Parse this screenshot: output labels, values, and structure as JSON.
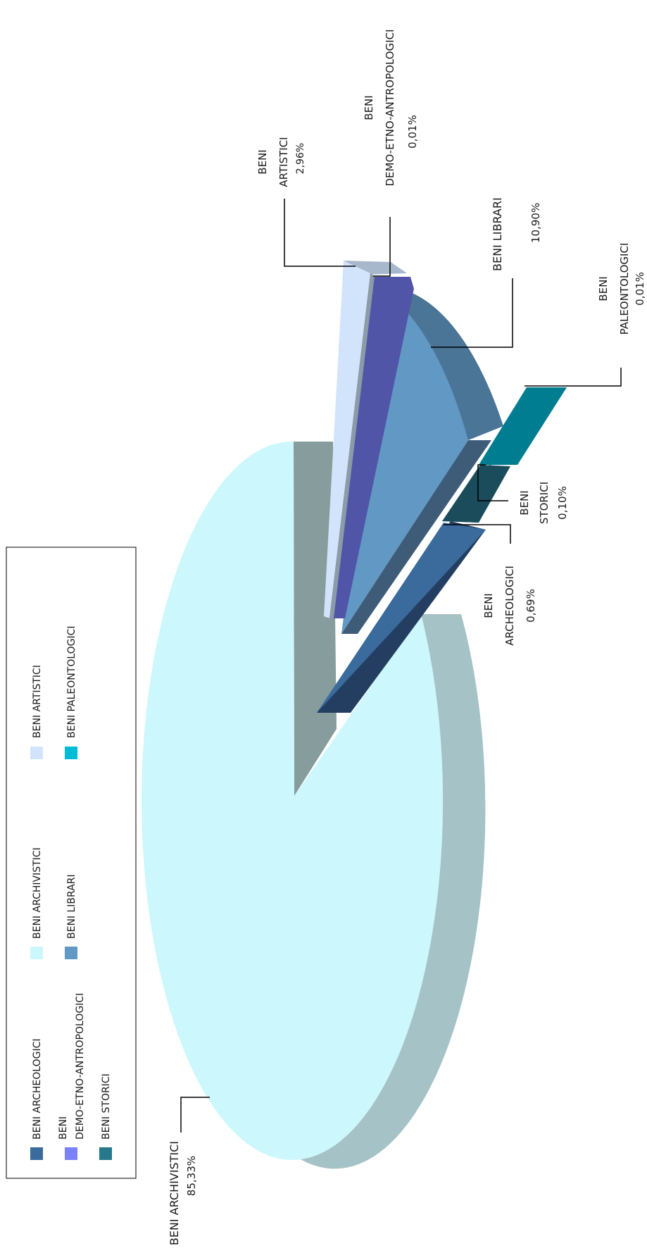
{
  "chart_data": {
    "type": "pie",
    "title": "",
    "style": "3d-exploded",
    "rotation": "rotated 90 degrees counter-clockwise",
    "legend_position": "left",
    "slices": [
      {
        "label": "BENI ARCHIVISTICI",
        "value": 85.33,
        "value_label": "85,33%",
        "color": "#ccf7fc"
      },
      {
        "label": "BENI ARTISTICI",
        "value": 2.96,
        "value_label": "2,96%",
        "color": "#d2e3fc"
      },
      {
        "label": "BENI DEMO-ETNO-ANTROPOLOGICI",
        "value": 0.01,
        "value_label": "0,01%",
        "color": "#5155a8"
      },
      {
        "label": "BENI LIBRARI",
        "value": 10.9,
        "value_label": "10,90%",
        "color": "#6198c4"
      },
      {
        "label": "BENI PALEONTOLOGICI",
        "value": 0.01,
        "value_label": "0,01%",
        "color": "#007d91"
      },
      {
        "label": "BENI STORICI",
        "value": 0.1,
        "value_label": "0,10%",
        "color": "#1a4c5c"
      },
      {
        "label": "BENI ARCHEOLOGICI",
        "value": 0.69,
        "value_label": "0,69%",
        "color": "#3a6b9c"
      }
    ],
    "data_labels": {
      "archivistici": {
        "name": "BENI ARCHIVISTICI",
        "value": "85,33%"
      },
      "artistici": {
        "line1": "BENI",
        "line2": "ARTISTICI",
        "value": "2,96%"
      },
      "demo": {
        "line1": "BENI",
        "line2": "DEMO-ETNO-ANTROPOLOGICI",
        "value": "0,01%"
      },
      "librari": {
        "name": "BENI LIBRARI",
        "value": "10,90%"
      },
      "paleontologici": {
        "line1": "BENI",
        "line2": "PALEONTOLOGICI",
        "value": "0,01%"
      },
      "storici": {
        "line1": "BENI",
        "line2": "STORICI",
        "value": "0,10%"
      },
      "archeologici": {
        "line1": "BENI",
        "line2": "ARCHEOLOGICI",
        "value": "0,69%"
      }
    },
    "legend": [
      {
        "label": "BENI ARCHEOLOGICI",
        "color": "#3a6b9c"
      },
      {
        "label": "BENI ARCHIVISTICI",
        "color": "#ccf7fc"
      },
      {
        "label": "BENI ARTISTICI",
        "color": "#d2e3fc"
      },
      {
        "label_line1": "BENI",
        "label_line2": "DEMO-ETNO-ANTROPOLOGICI",
        "color": "#7b81f7"
      },
      {
        "label": "BENI LIBRARI",
        "color": "#6198c4"
      },
      {
        "label": "BENI PALEONTOLOGICI",
        "color": "#00bcd6"
      },
      {
        "label": "BENI STORICI",
        "color": "#26788a"
      }
    ]
  }
}
